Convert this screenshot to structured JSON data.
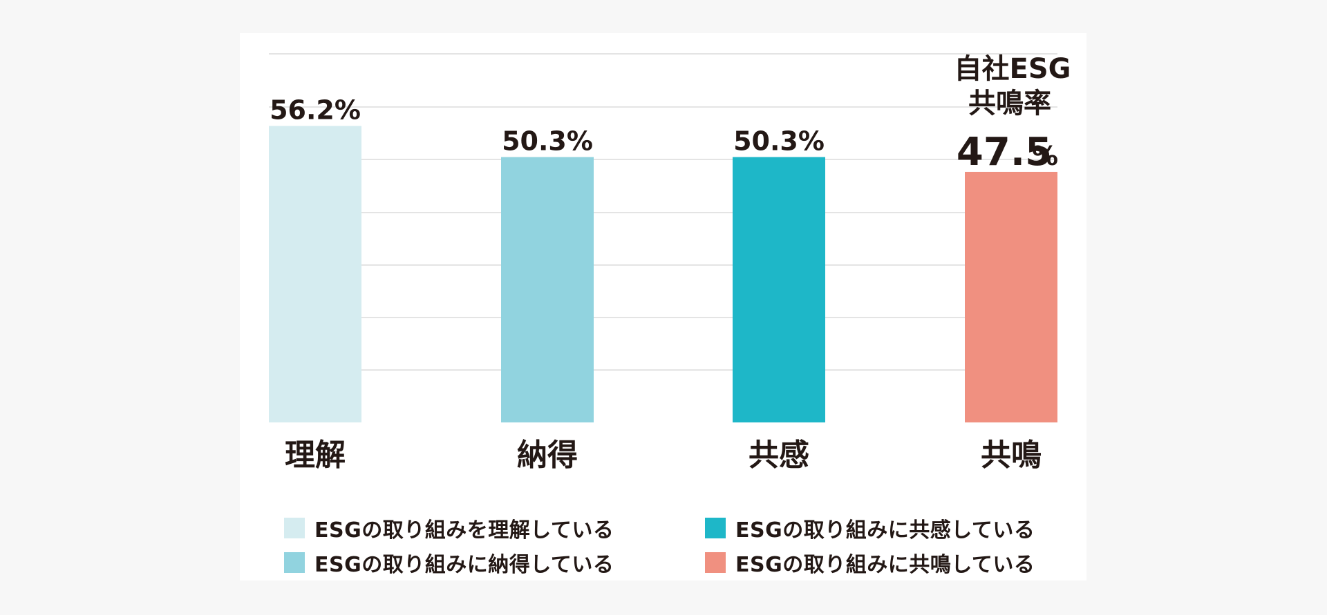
{
  "chart_data": {
    "type": "bar",
    "title": "",
    "xlabel": "",
    "ylabel": "",
    "ylim": [
      0,
      70
    ],
    "categories": [
      "理解",
      "納得",
      "共感",
      "共鳴"
    ],
    "values": [
      56.2,
      50.3,
      50.3,
      47.5
    ],
    "value_labels": [
      "56.2%",
      "50.3%",
      "50.3%",
      "47.5"
    ],
    "percent_suffix": "%",
    "highlight": {
      "index": 3,
      "title_line1": "自社ESG",
      "title_line2": "共鳴率"
    },
    "colors": [
      "#d5ecf0",
      "#91d3df",
      "#1eb7c8",
      "#f09080"
    ],
    "grid": true,
    "legend": [
      "ESGの取り組みを理解している",
      "ESGの取り組みに納得している",
      "ESGの取り組みに共感している",
      "ESGの取り組みに共鳴している"
    ]
  }
}
